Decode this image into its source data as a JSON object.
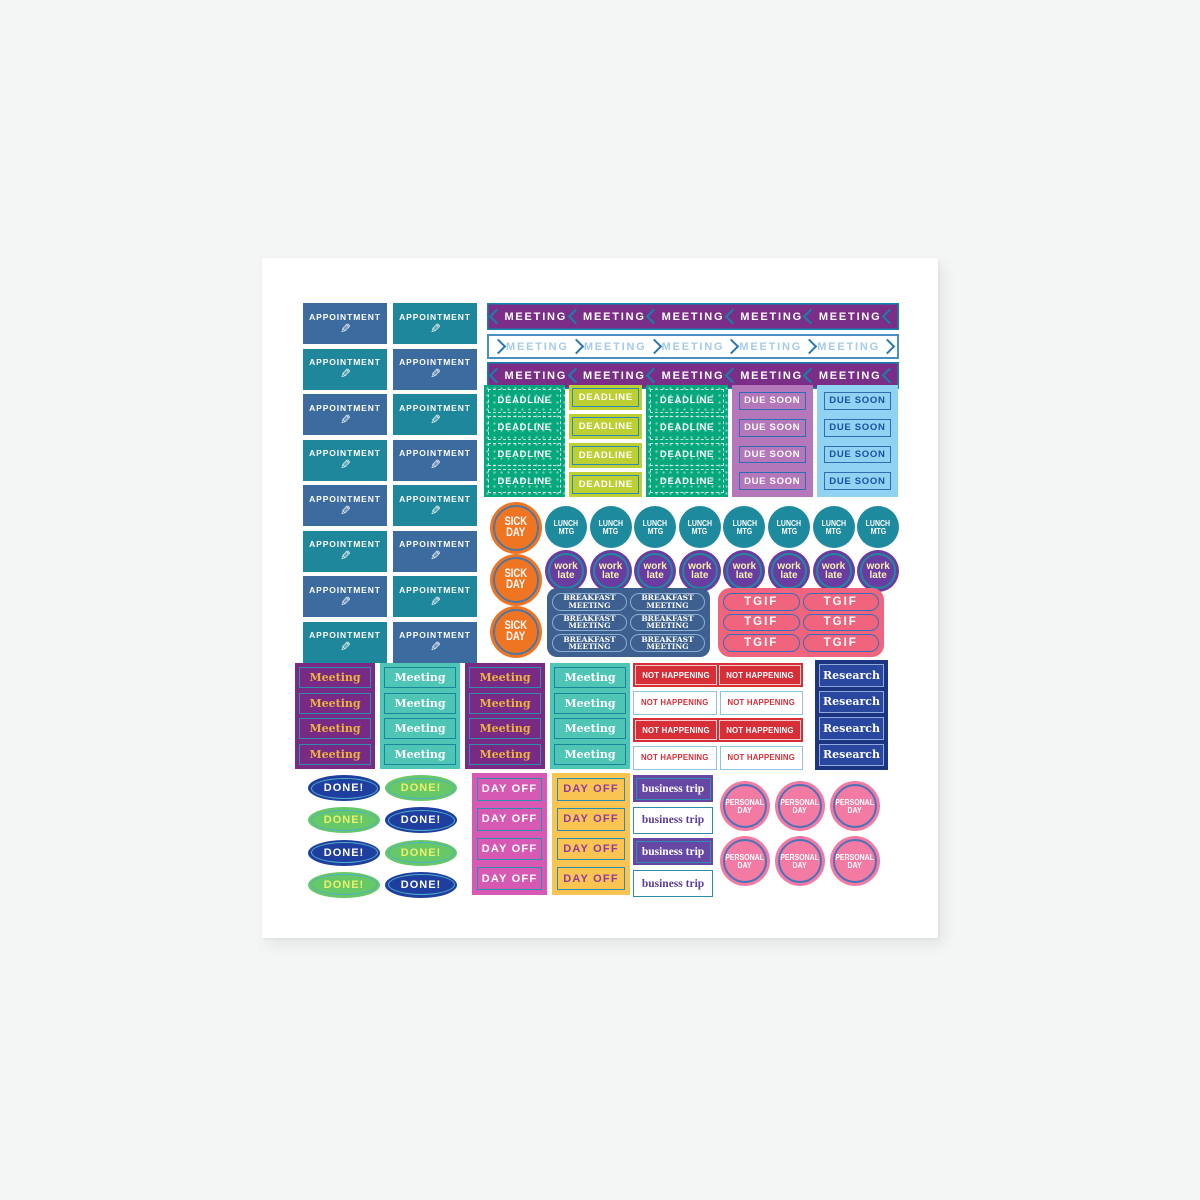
{
  "palette": {
    "appt_blue": "#3c6ba0",
    "appt_teal": "#1f879b",
    "banner_purple": "#7b2e88",
    "chev_teal": "#0f85ac",
    "banner2_border": "#4a8fc0",
    "banner2_text": "#a5cbe9",
    "chev_blue": "#2878b0",
    "dl_green": "#04a87c",
    "dl_lime": "#bccf33",
    "dl_mauve": "#b478ba",
    "dl_lblue": "#8fd2f2",
    "frame_teal": "#2b8ab3",
    "frame_blue": "#2f6cb3",
    "navy_text": "#1b4fa3",
    "sick_orange": "#f07523",
    "sick_ring": "#52779f",
    "lunch_teal": "#1e8a9d",
    "work_purple": "#6a3ca2",
    "work_text": "#f6f1b0",
    "bkf_blue": "#3d6090",
    "bkf_border": "#8aaed2",
    "tgif_coral": "#f0657d",
    "tgif_border": "#3a6cb8",
    "mtg_purple": "#782a85",
    "mtg_teal": "#4ec5b5",
    "mtg_gold": "#ecb33f",
    "frame_teal2": "#2e8cad",
    "frame_teal3": "#17869a",
    "nh_red": "#d62f37",
    "nh_border": "#8ec2dd",
    "rsr_navy": "#1b3581",
    "rsr_cell": "#2a47a0",
    "rsr_frame": "#8fa9dc",
    "done_blue": "#1e3fa0",
    "done_green": "#67c868",
    "done_yellow": "#edf06b",
    "done_ring": "#4fb0c9",
    "do_pink": "#d65ab4",
    "do_yellow": "#f9c451",
    "do_purple": "#8e3c9e",
    "biz_purple": "#6648a4",
    "biz_text": "#5c3f9b",
    "pd_pink": "#f37ba3",
    "pd_ring": "#4a72b8"
  },
  "stickers": {
    "appointment": {
      "label": "APPOINTMENT",
      "icon": "pencil-icon",
      "icon_glyph": "✎",
      "rows": 8,
      "cols": 2
    },
    "meeting_banner": {
      "label": "MEETING",
      "segments": 5,
      "rows": [
        "purple",
        "white",
        "purple"
      ]
    },
    "deadline_grid": {
      "rows": 4,
      "columns": [
        {
          "label": "DEADLINE",
          "variant": "green"
        },
        {
          "label": "DEADLINE",
          "variant": "lime"
        },
        {
          "label": "DEADLINE",
          "variant": "green"
        },
        {
          "label": "DUE SOON",
          "variant": "mauve"
        },
        {
          "label": "DUE SOON",
          "variant": "lightblue"
        }
      ]
    },
    "sick_day": {
      "lines": [
        "SICK",
        "DAY"
      ],
      "count": 3
    },
    "lunch_mtg": {
      "lines": [
        "LUNCH",
        "MTG"
      ],
      "count": 8
    },
    "work_late": {
      "lines": [
        "work",
        "late"
      ],
      "count": 8
    },
    "breakfast_meeting": {
      "lines": [
        "BREAKFAST",
        "MEETING"
      ],
      "count": 6
    },
    "tgif": {
      "label": "TGIF",
      "count": 6
    },
    "meeting_labels": {
      "label": "Meeting",
      "columns": [
        "purple",
        "teal",
        "purple",
        "teal"
      ],
      "rows": 4
    },
    "not_happening": {
      "label": "NOT HAPPENING",
      "rows": [
        "red",
        "white",
        "red",
        "white"
      ],
      "cols": 2
    },
    "research": {
      "label": "Research",
      "count": 4
    },
    "done": {
      "label": "DONE!",
      "rows": 4,
      "cols": 2
    },
    "day_off": {
      "label": "DAY OFF",
      "strips": [
        "pink",
        "yellow"
      ],
      "rows": 4
    },
    "business_trip": {
      "label": "business trip",
      "rows": [
        "purple",
        "white",
        "purple",
        "white"
      ]
    },
    "personal_day": {
      "lines": [
        "PERSONAL",
        "DAY"
      ],
      "rows": 2,
      "cols": 3
    }
  }
}
